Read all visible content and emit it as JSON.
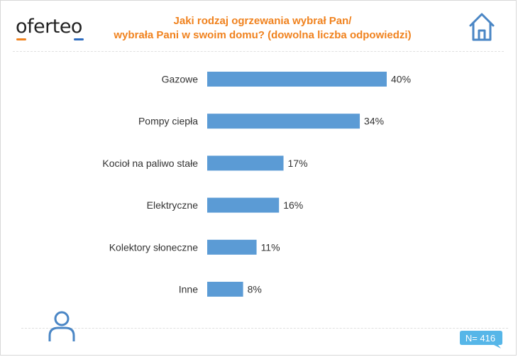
{
  "brand": {
    "name": "oferteo",
    "accent_color": "#f0821e",
    "underline_color": "#f0821e",
    "underline_color_2": "#2e6cbf"
  },
  "header": {
    "title_line1": "Jaki rodzaj ogrzewania wybrał Pan/",
    "title_line2": "wybrała Pani w swoim domu? (dowolna liczba odpowiedzi)"
  },
  "icons": {
    "house": "house-icon",
    "person": "person-icon",
    "color": "#4a86c5"
  },
  "footer": {
    "sample_size": "N= 416",
    "badge_color": "#56b6e8"
  },
  "chart_data": {
    "type": "bar",
    "orientation": "horizontal",
    "title": "Jaki rodzaj ogrzewania wybrał Pan/wybrała Pani w swoim domu? (dowolna liczba odpowiedzi)",
    "categories": [
      "Gazowe",
      "Pompy ciepła",
      "Kocioł na paliwo stałe",
      "Elektryczne",
      "Kolektory słoneczne",
      "Inne"
    ],
    "values": [
      40,
      34,
      17,
      16,
      11,
      8
    ],
    "value_labels": [
      "40%",
      "34%",
      "17%",
      "16%",
      "11%",
      "8%"
    ],
    "unit": "%",
    "xlim": [
      0,
      40
    ],
    "bar_color": "#5b9bd5",
    "grid": false,
    "xlabel": "",
    "ylabel": ""
  }
}
